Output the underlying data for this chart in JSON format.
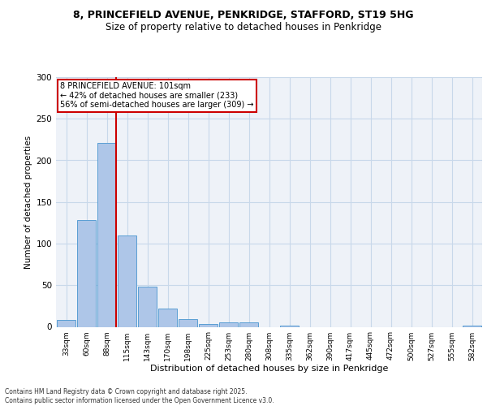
{
  "title_line1": "8, PRINCEFIELD AVENUE, PENKRIDGE, STAFFORD, ST19 5HG",
  "title_line2": "Size of property relative to detached houses in Penkridge",
  "xlabel": "Distribution of detached houses by size in Penkridge",
  "ylabel": "Number of detached properties",
  "bar_labels": [
    "33sqm",
    "60sqm",
    "88sqm",
    "115sqm",
    "143sqm",
    "170sqm",
    "198sqm",
    "225sqm",
    "253sqm",
    "280sqm",
    "308sqm",
    "335sqm",
    "362sqm",
    "390sqm",
    "417sqm",
    "445sqm",
    "472sqm",
    "500sqm",
    "527sqm",
    "555sqm",
    "582sqm"
  ],
  "bar_values": [
    8,
    128,
    221,
    110,
    48,
    22,
    9,
    3,
    5,
    5,
    0,
    1,
    0,
    0,
    0,
    0,
    0,
    0,
    0,
    0,
    1
  ],
  "bar_color": "#aec6e8",
  "bar_edge_color": "#5a9fd4",
  "grid_color": "#c8d8ea",
  "background_color": "#eef2f8",
  "vline_color": "#cc0000",
  "annotation_text": "8 PRINCEFIELD AVENUE: 101sqm\n← 42% of detached houses are smaller (233)\n56% of semi-detached houses are larger (309) →",
  "annotation_box_color": "#ffffff",
  "annotation_box_edge": "#cc0000",
  "ylim": [
    0,
    300
  ],
  "yticks": [
    0,
    50,
    100,
    150,
    200,
    250,
    300
  ],
  "footer_line1": "Contains HM Land Registry data © Crown copyright and database right 2025.",
  "footer_line2": "Contains public sector information licensed under the Open Government Licence v3.0."
}
